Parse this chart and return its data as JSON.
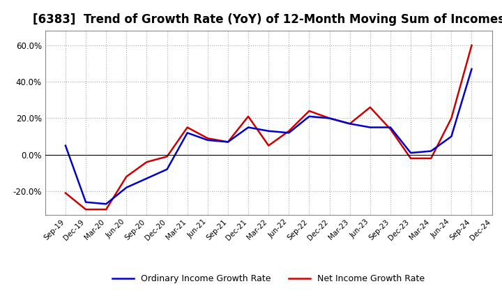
{
  "title": "[6383]  Trend of Growth Rate (YoY) of 12-Month Moving Sum of Incomes",
  "x_labels": [
    "Sep-19",
    "Dec-19",
    "Mar-20",
    "Jun-20",
    "Sep-20",
    "Dec-20",
    "Mar-21",
    "Jun-21",
    "Sep-21",
    "Dec-21",
    "Mar-22",
    "Jun-22",
    "Sep-22",
    "Dec-22",
    "Mar-23",
    "Jun-23",
    "Sep-23",
    "Dec-23",
    "Mar-24",
    "Jun-24",
    "Sep-24",
    "Dec-24"
  ],
  "ordinary_income": [
    0.05,
    -0.26,
    -0.27,
    -0.18,
    -0.13,
    -0.08,
    0.12,
    0.08,
    0.07,
    0.15,
    0.13,
    0.12,
    0.21,
    0.2,
    0.17,
    0.15,
    0.15,
    0.01,
    0.02,
    0.1,
    0.47,
    null
  ],
  "net_income": [
    -0.21,
    -0.3,
    -0.3,
    -0.12,
    -0.04,
    -0.01,
    0.15,
    0.09,
    0.07,
    0.21,
    0.05,
    0.13,
    0.24,
    0.2,
    0.17,
    0.26,
    0.14,
    -0.02,
    -0.02,
    0.2,
    0.6,
    null
  ],
  "ordinary_color": "#0000cc",
  "net_color": "#cc0000",
  "ylim": [
    -0.33,
    0.68
  ],
  "yticks": [
    -0.2,
    0.0,
    0.2,
    0.4,
    0.6
  ],
  "background_color": "#ffffff",
  "grid_color": "#aaaaaa",
  "title_fontsize": 12,
  "legend_ordinary": "Ordinary Income Growth Rate",
  "legend_net": "Net Income Growth Rate"
}
